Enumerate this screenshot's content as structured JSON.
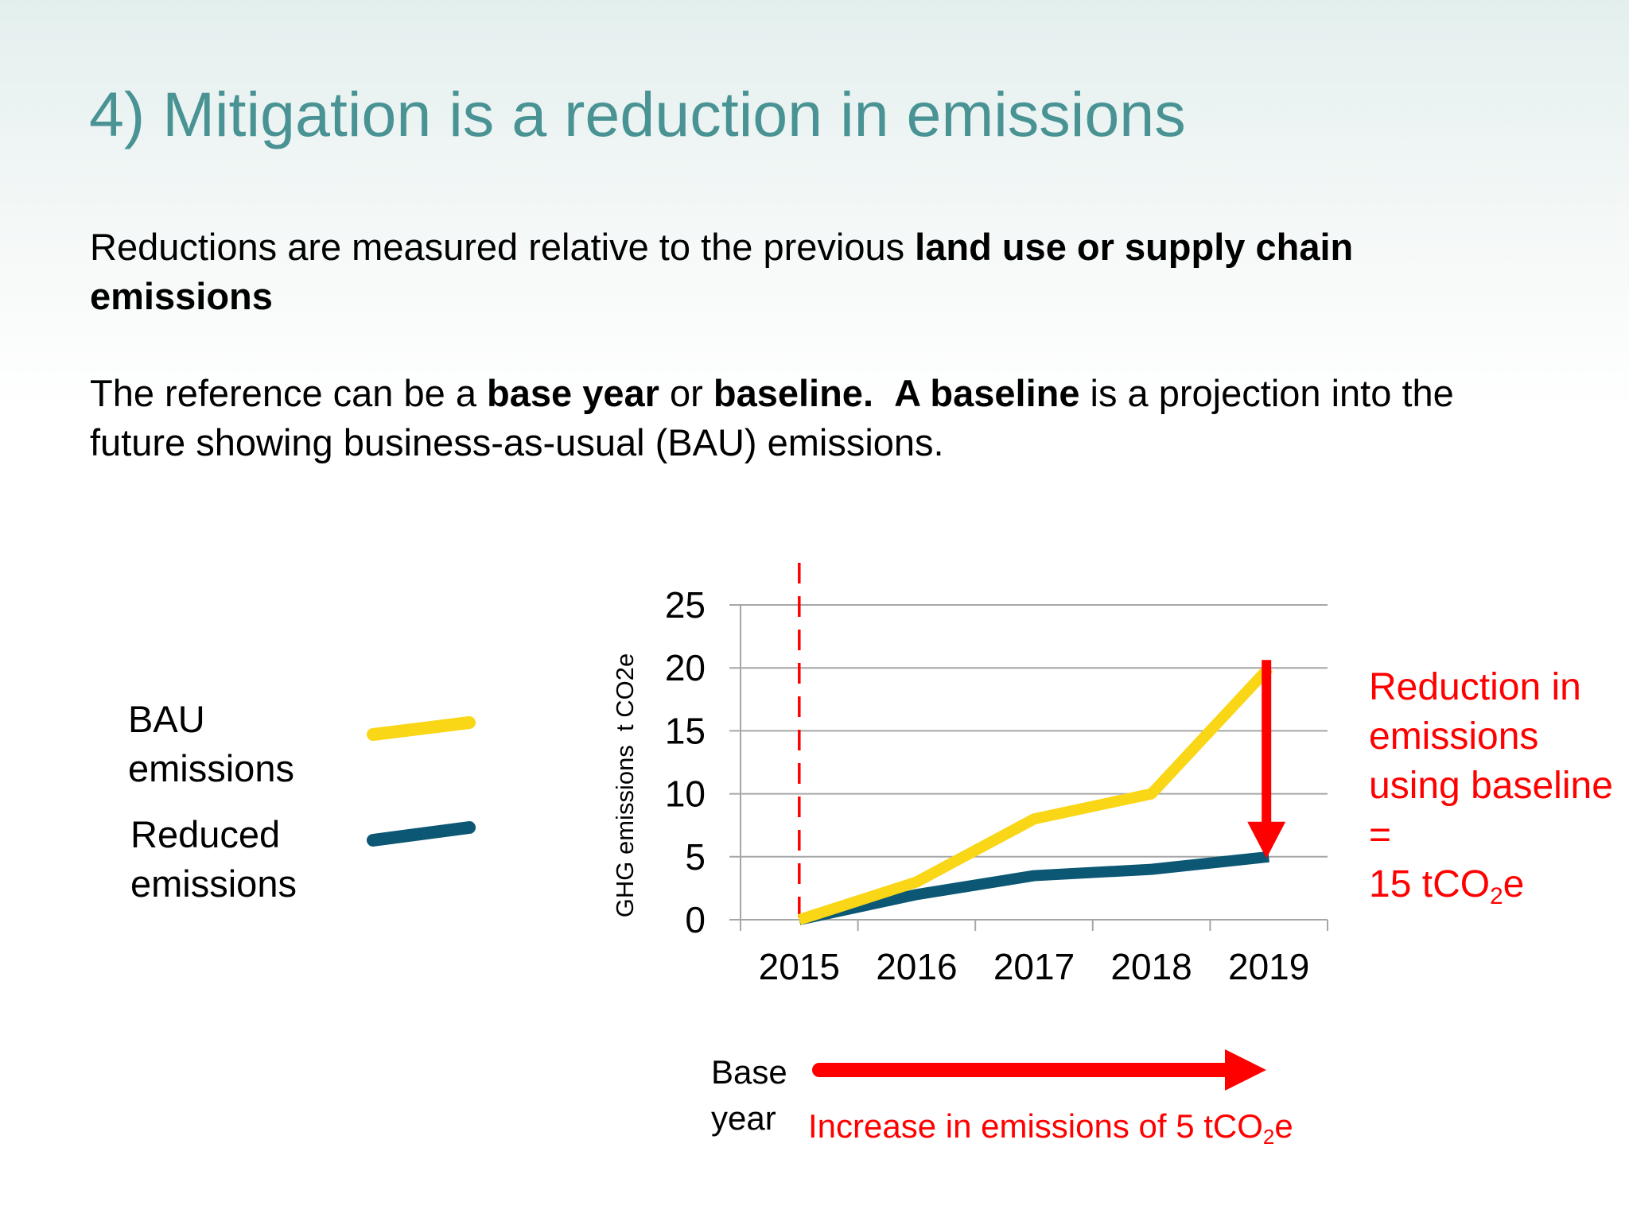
{
  "slide": {
    "title": "4) Mitigation is a reduction in emissions",
    "para1": {
      "part1": "Reductions are measured relative to the previous ",
      "part1_bold": "land use or supply chain emissions"
    },
    "para2": {
      "part1": "The reference can be a ",
      "bold1": "base year",
      "part2": " or ",
      "bold2": "baseline.",
      "part3": "  ",
      "bold3": "A baseline",
      "part4": " is a projection into the future showing business-as-usual (BAU) emissions."
    },
    "legend": {
      "bau_label": "BAU emissions",
      "reduced_label": "Reduced emissions"
    },
    "reduction_note": {
      "line1": "Reduction in emissions using baseline =",
      "line2_prefix": "15 tCO",
      "line2_sub": "2",
      "line2_suffix": "e"
    },
    "increase_note": {
      "prefix": "Increase in emissions of 5 tCO",
      "sub": "2",
      "suffix": "e"
    },
    "base_year_label": "Base year",
    "colors": {
      "title": "#4a9394",
      "bau": "#f9d616",
      "reduced": "#0b5774",
      "annotation": "#ff0000",
      "grid": "#a6a6a6"
    }
  },
  "chart_data": {
    "type": "line",
    "categories": [
      "2015",
      "2016",
      "2017",
      "2018",
      "2019"
    ],
    "series": [
      {
        "name": "BAU emissions",
        "values": [
          0,
          3,
          8,
          10,
          20
        ]
      },
      {
        "name": "Reduced emissions",
        "values": [
          0,
          2,
          3.5,
          4,
          5
        ]
      }
    ],
    "title": "",
    "xlabel": "",
    "ylabel": "GHG emissions  t CO2e",
    "ylim": [
      0,
      25
    ],
    "yticks": [
      0,
      5,
      10,
      15,
      20,
      25
    ],
    "grid": true,
    "base_year": "2015"
  }
}
